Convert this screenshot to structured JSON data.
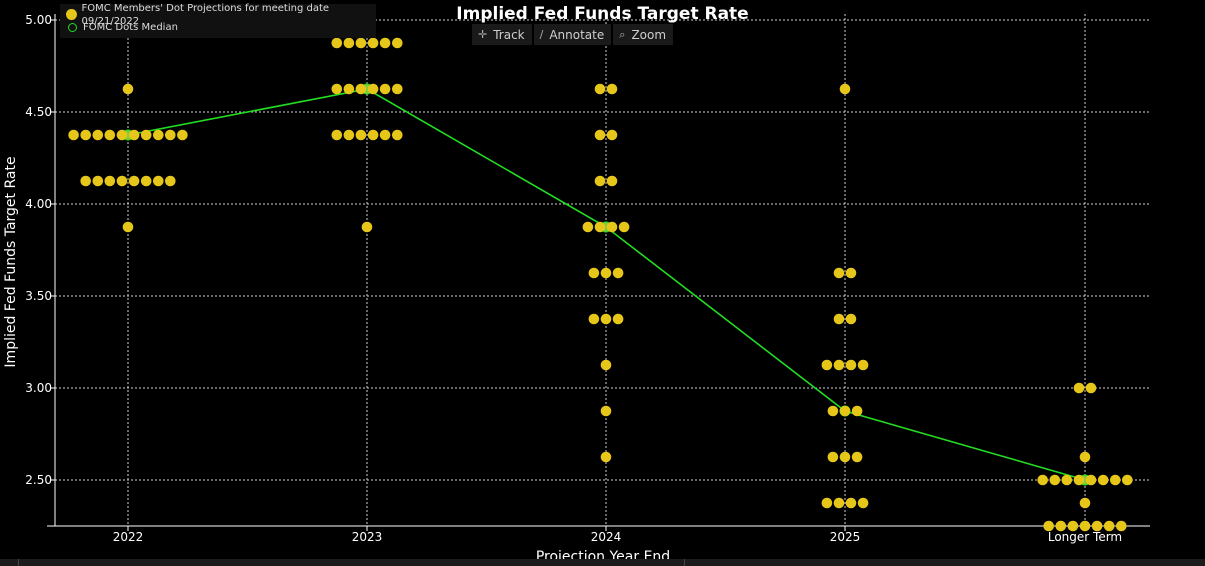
{
  "chart_data": {
    "type": "scatter",
    "title": "Implied Fed Funds Target Rate",
    "ylabel": "Implied Fed Funds Target Rate",
    "xlabel": "Projection Year End",
    "categories": [
      "2022",
      "2023",
      "2024",
      "2025",
      "Longer Term"
    ],
    "ylim": [
      2.25,
      5.0
    ],
    "yticks": [
      "2.50",
      "3.00",
      "3.50",
      "4.00",
      "4.50",
      "5.00"
    ],
    "grid": true,
    "legend_placement": "top-left",
    "series": [
      {
        "name": "FOMC Members' Dot Projections for meeting date 09/21/2022",
        "kind": "dots",
        "color": "#e6c619",
        "groups": [
          [
            {
              "y": 4.625,
              "count": 1
            },
            {
              "y": 4.375,
              "count": 10
            },
            {
              "y": 4.125,
              "count": 8
            },
            {
              "y": 3.875,
              "count": 1
            }
          ],
          [
            {
              "y": 4.875,
              "count": 6
            },
            {
              "y": 4.625,
              "count": 6
            },
            {
              "y": 4.375,
              "count": 6
            },
            {
              "y": 3.875,
              "count": 1
            }
          ],
          [
            {
              "y": 4.625,
              "count": 2
            },
            {
              "y": 4.375,
              "count": 2
            },
            {
              "y": 4.125,
              "count": 2
            },
            {
              "y": 3.875,
              "count": 4
            },
            {
              "y": 3.625,
              "count": 3
            },
            {
              "y": 3.375,
              "count": 3
            },
            {
              "y": 3.125,
              "count": 1
            },
            {
              "y": 2.875,
              "count": 1
            },
            {
              "y": 2.625,
              "count": 1
            }
          ],
          [
            {
              "y": 4.625,
              "count": 1
            },
            {
              "y": 3.625,
              "count": 2
            },
            {
              "y": 3.375,
              "count": 2
            },
            {
              "y": 3.125,
              "count": 4
            },
            {
              "y": 2.875,
              "count": 3
            },
            {
              "y": 2.625,
              "count": 3
            },
            {
              "y": 2.375,
              "count": 4
            }
          ],
          [
            {
              "y": 3.0,
              "count": 2
            },
            {
              "y": 2.625,
              "count": 1
            },
            {
              "y": 2.5,
              "count": 8
            },
            {
              "y": 2.375,
              "count": 1
            },
            {
              "y": 2.25,
              "count": 7
            }
          ]
        ]
      },
      {
        "name": "FOMC Dots Median",
        "kind": "line",
        "color": "#22dd22",
        "values": [
          4.375,
          4.625,
          3.875,
          2.875,
          2.5
        ]
      }
    ]
  },
  "toolbar": {
    "track_label": "Track",
    "track_icon": "crosshair-icon",
    "annotate_label": "Annotate",
    "annotate_icon": "pencil-icon",
    "zoom_label": "Zoom",
    "zoom_icon": "magnifier-icon"
  }
}
